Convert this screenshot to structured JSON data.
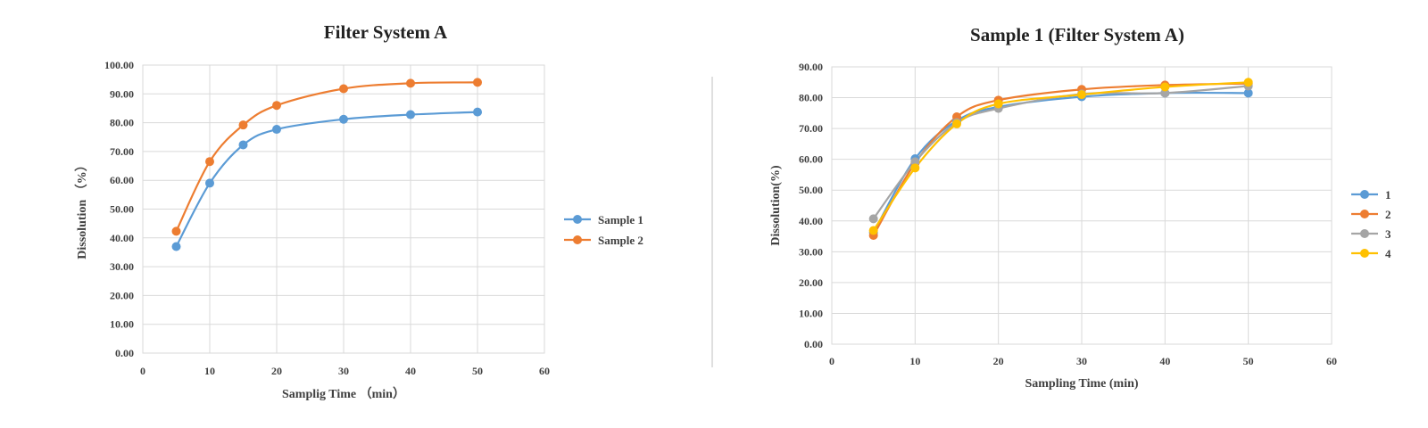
{
  "chart_data": [
    {
      "type": "line",
      "title": "Filter System A",
      "xlabel": "Samplig Time （min）",
      "ylabel": "Dissolution （%）",
      "xlim": [
        0,
        60
      ],
      "ylim": [
        0,
        100
      ],
      "x_ticks": [
        "0",
        "10",
        "20",
        "30",
        "40",
        "50",
        "60"
      ],
      "y_ticks": [
        "0.00",
        "10.00",
        "20.00",
        "30.00",
        "40.00",
        "50.00",
        "60.00",
        "70.00",
        "80.00",
        "90.00",
        "100.00"
      ],
      "x": [
        5,
        10,
        15,
        20,
        30,
        40,
        50
      ],
      "grid": true,
      "legend": "right",
      "series": [
        {
          "name": "Sample 1",
          "color": "#5b9bd5",
          "values": [
            37.0,
            59.0,
            72.3,
            77.7,
            81.2,
            82.8,
            83.7
          ]
        },
        {
          "name": "Sample 2",
          "color": "#ed7d31",
          "values": [
            42.3,
            66.5,
            79.2,
            86.0,
            91.8,
            93.7,
            94.0
          ]
        }
      ]
    },
    {
      "type": "line",
      "title": "Sample 1 (Filter System A)",
      "xlabel": "Sampling Time (min)",
      "ylabel": "Dissolution(%)",
      "xlim": [
        0,
        60
      ],
      "ylim": [
        0,
        90
      ],
      "x_ticks": [
        "0",
        "10",
        "20",
        "30",
        "40",
        "50",
        "60"
      ],
      "y_ticks": [
        "0.00",
        "10.00",
        "20.00",
        "30.00",
        "40.00",
        "50.00",
        "60.00",
        "70.00",
        "80.00",
        "90.00"
      ],
      "x": [
        5,
        10,
        20,
        15,
        30,
        40,
        50
      ],
      "grid": true,
      "legend": "right",
      "series": [
        {
          "name": "1",
          "color": "#5b9bd5",
          "values": [
            36.2,
            60.2,
            77.0,
            72.5,
            80.3,
            81.5,
            81.5
          ]
        },
        {
          "name": "2",
          "color": "#ed7d31",
          "values": [
            35.3,
            58.8,
            79.2,
            73.8,
            82.7,
            84.1,
            84.6
          ]
        },
        {
          "name": "3",
          "color": "#a5a5a5",
          "values": [
            40.7,
            59.2,
            76.5,
            71.9,
            81.2,
            81.5,
            83.8
          ]
        },
        {
          "name": "4",
          "color": "#ffc000",
          "values": [
            36.9,
            57.2,
            78.0,
            71.5,
            81.0,
            83.5,
            85.0
          ]
        }
      ]
    }
  ]
}
